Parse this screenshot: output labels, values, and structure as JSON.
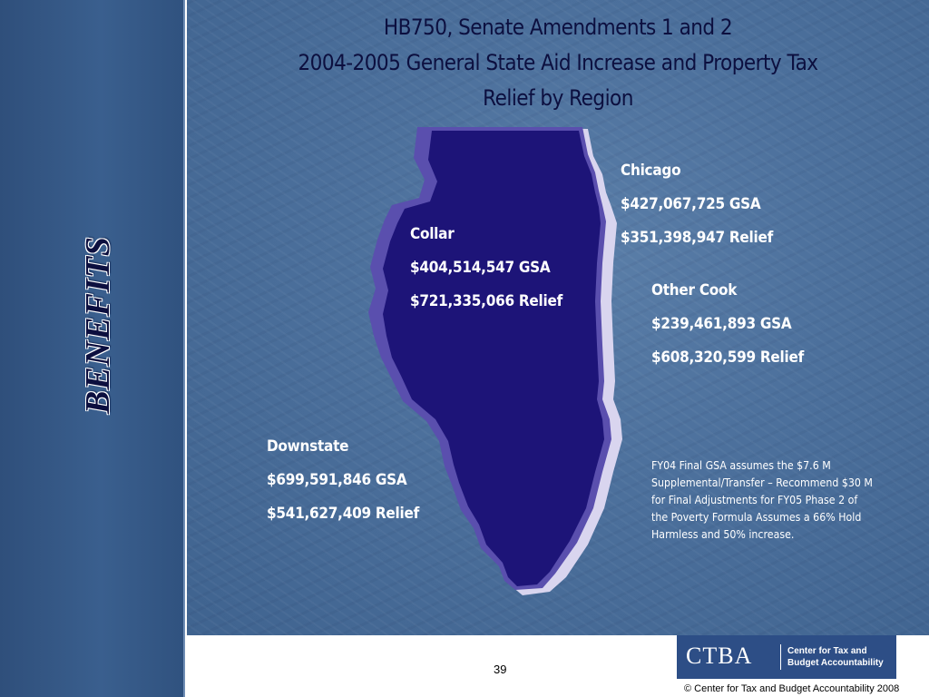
{
  "sidebar": {
    "section_title": "BENEFITS"
  },
  "header": {
    "title_line1": "HB750, Senate Amendments 1 and 2",
    "title_line2": "2004-2005 General State Aid Increase and Property Tax",
    "title_line3": "Relief by Region"
  },
  "regions": {
    "chicago": {
      "name": "Chicago",
      "gsa": "$427,067,725 GSA",
      "relief": "$351,398,947 Relief"
    },
    "collar": {
      "name": "Collar",
      "gsa": "$404,514,547 GSA",
      "relief": "$721,335,066 Relief"
    },
    "other_cook": {
      "name": "Other Cook",
      "gsa": "$239,461,893 GSA",
      "relief": "$608,320,599 Relief"
    },
    "downstate": {
      "name": "Downstate",
      "gsa": "$699,591,846 GSA",
      "relief": "$541,627,409 Relief"
    }
  },
  "footnote": "FY04 Final GSA assumes the $7.6 M Supplemental/Transfer – Recommend $30 M for Final Adjustments for FY05 Phase 2 of the Poverty Formula Assumes a 66% Hold Harmless and 50% increase.",
  "footer": {
    "page_number": "39",
    "logo_text": "CTBA",
    "logo_subtitle_line1": "Center for Tax and",
    "logo_subtitle_line2": "Budget Accountability",
    "copyright": "©  Center for Tax and Budget Accountability 2008"
  },
  "colors": {
    "map_fill": "#1d1478",
    "map_shadow": "#5a4fae",
    "map_highlight": "#d6d2ee",
    "background": "#4d719d",
    "title_text": "#0c0f3f",
    "logo_bg": "#2d4e86"
  }
}
